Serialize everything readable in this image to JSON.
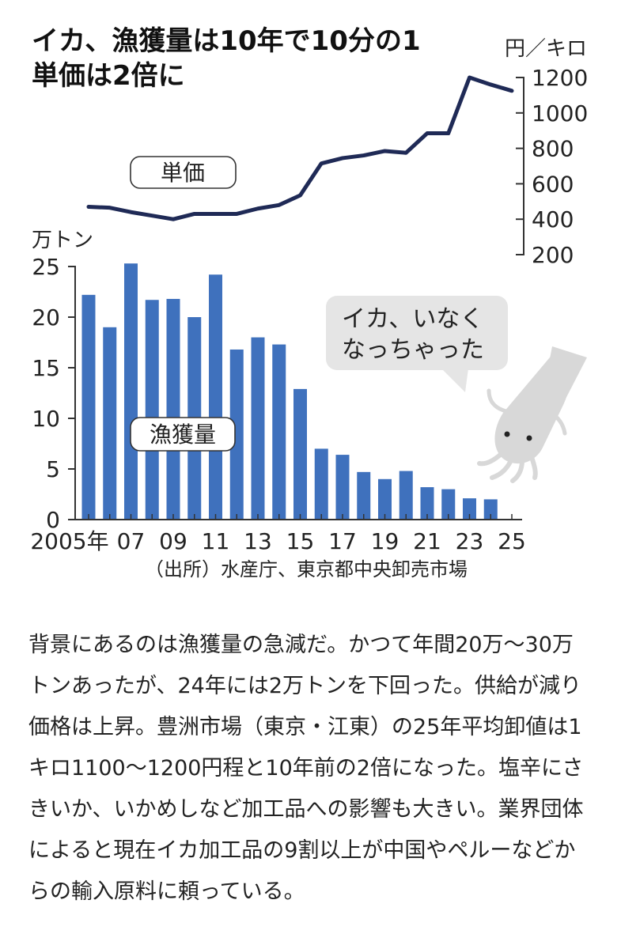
{
  "chart_data": [
    {
      "type": "line",
      "name": "unit-price",
      "label": "単価",
      "unit": "円／キロ",
      "x": [
        2005,
        2006,
        2007,
        2008,
        2009,
        2010,
        2011,
        2012,
        2013,
        2014,
        2015,
        2016,
        2017,
        2018,
        2019,
        2020,
        2021,
        2022,
        2023,
        2024,
        2025
      ],
      "values": [
        470,
        465,
        440,
        420,
        400,
        430,
        430,
        430,
        460,
        480,
        535,
        715,
        745,
        760,
        785,
        775,
        885,
        885,
        1200,
        1160,
        1125
      ],
      "ylim": [
        200,
        1200
      ],
      "yticks": [
        1200,
        1000,
        800,
        600,
        400,
        200
      ],
      "color": "#1f2a56"
    },
    {
      "type": "bar",
      "name": "catch-volume",
      "label": "漁獲量",
      "unit": "万トン",
      "x": [
        2005,
        2006,
        2007,
        2008,
        2009,
        2010,
        2011,
        2012,
        2013,
        2014,
        2015,
        2016,
        2017,
        2018,
        2019,
        2020,
        2021,
        2022,
        2023,
        2024
      ],
      "values": [
        22.2,
        19.0,
        25.3,
        21.7,
        21.8,
        20.0,
        24.2,
        16.8,
        18.0,
        17.3,
        12.9,
        7.0,
        6.4,
        4.7,
        4.0,
        4.8,
        3.2,
        3.0,
        2.1,
        2.0
      ],
      "ylim": [
        0,
        25
      ],
      "yticks": [
        25,
        20,
        15,
        10,
        5,
        0
      ],
      "xticks": [
        "2005年",
        "07",
        "09",
        "11",
        "13",
        "15",
        "17",
        "19",
        "21",
        "23",
        "25"
      ],
      "color": "#3f71bd"
    }
  ],
  "titles": [
    "イカ、漁獲量は10年で10分の1",
    "単価は2倍に"
  ],
  "bubble_lines": [
    "イカ、いなく",
    "なっちゃった"
  ],
  "source": "（出所）水産庁、東京都中央卸売市場",
  "article": "背景にあるのは漁獲量の急減だ。かつて年間20万〜30万トンあったが、24年には2万トンを下回った。供給が減り価格は上昇。豊洲市場（東京・江東）の25年平均卸値は1キロ1100〜1200円程と10年前の2倍になった。塩辛にさきいか、いかめしなど加工品への影響も大きい。業界団体によると現在イカ加工品の9割以上が中国やペルーなどからの輸入原料に頼っている。",
  "icons": {
    "squid": "squid-icon",
    "bubble": "speech-bubble"
  }
}
